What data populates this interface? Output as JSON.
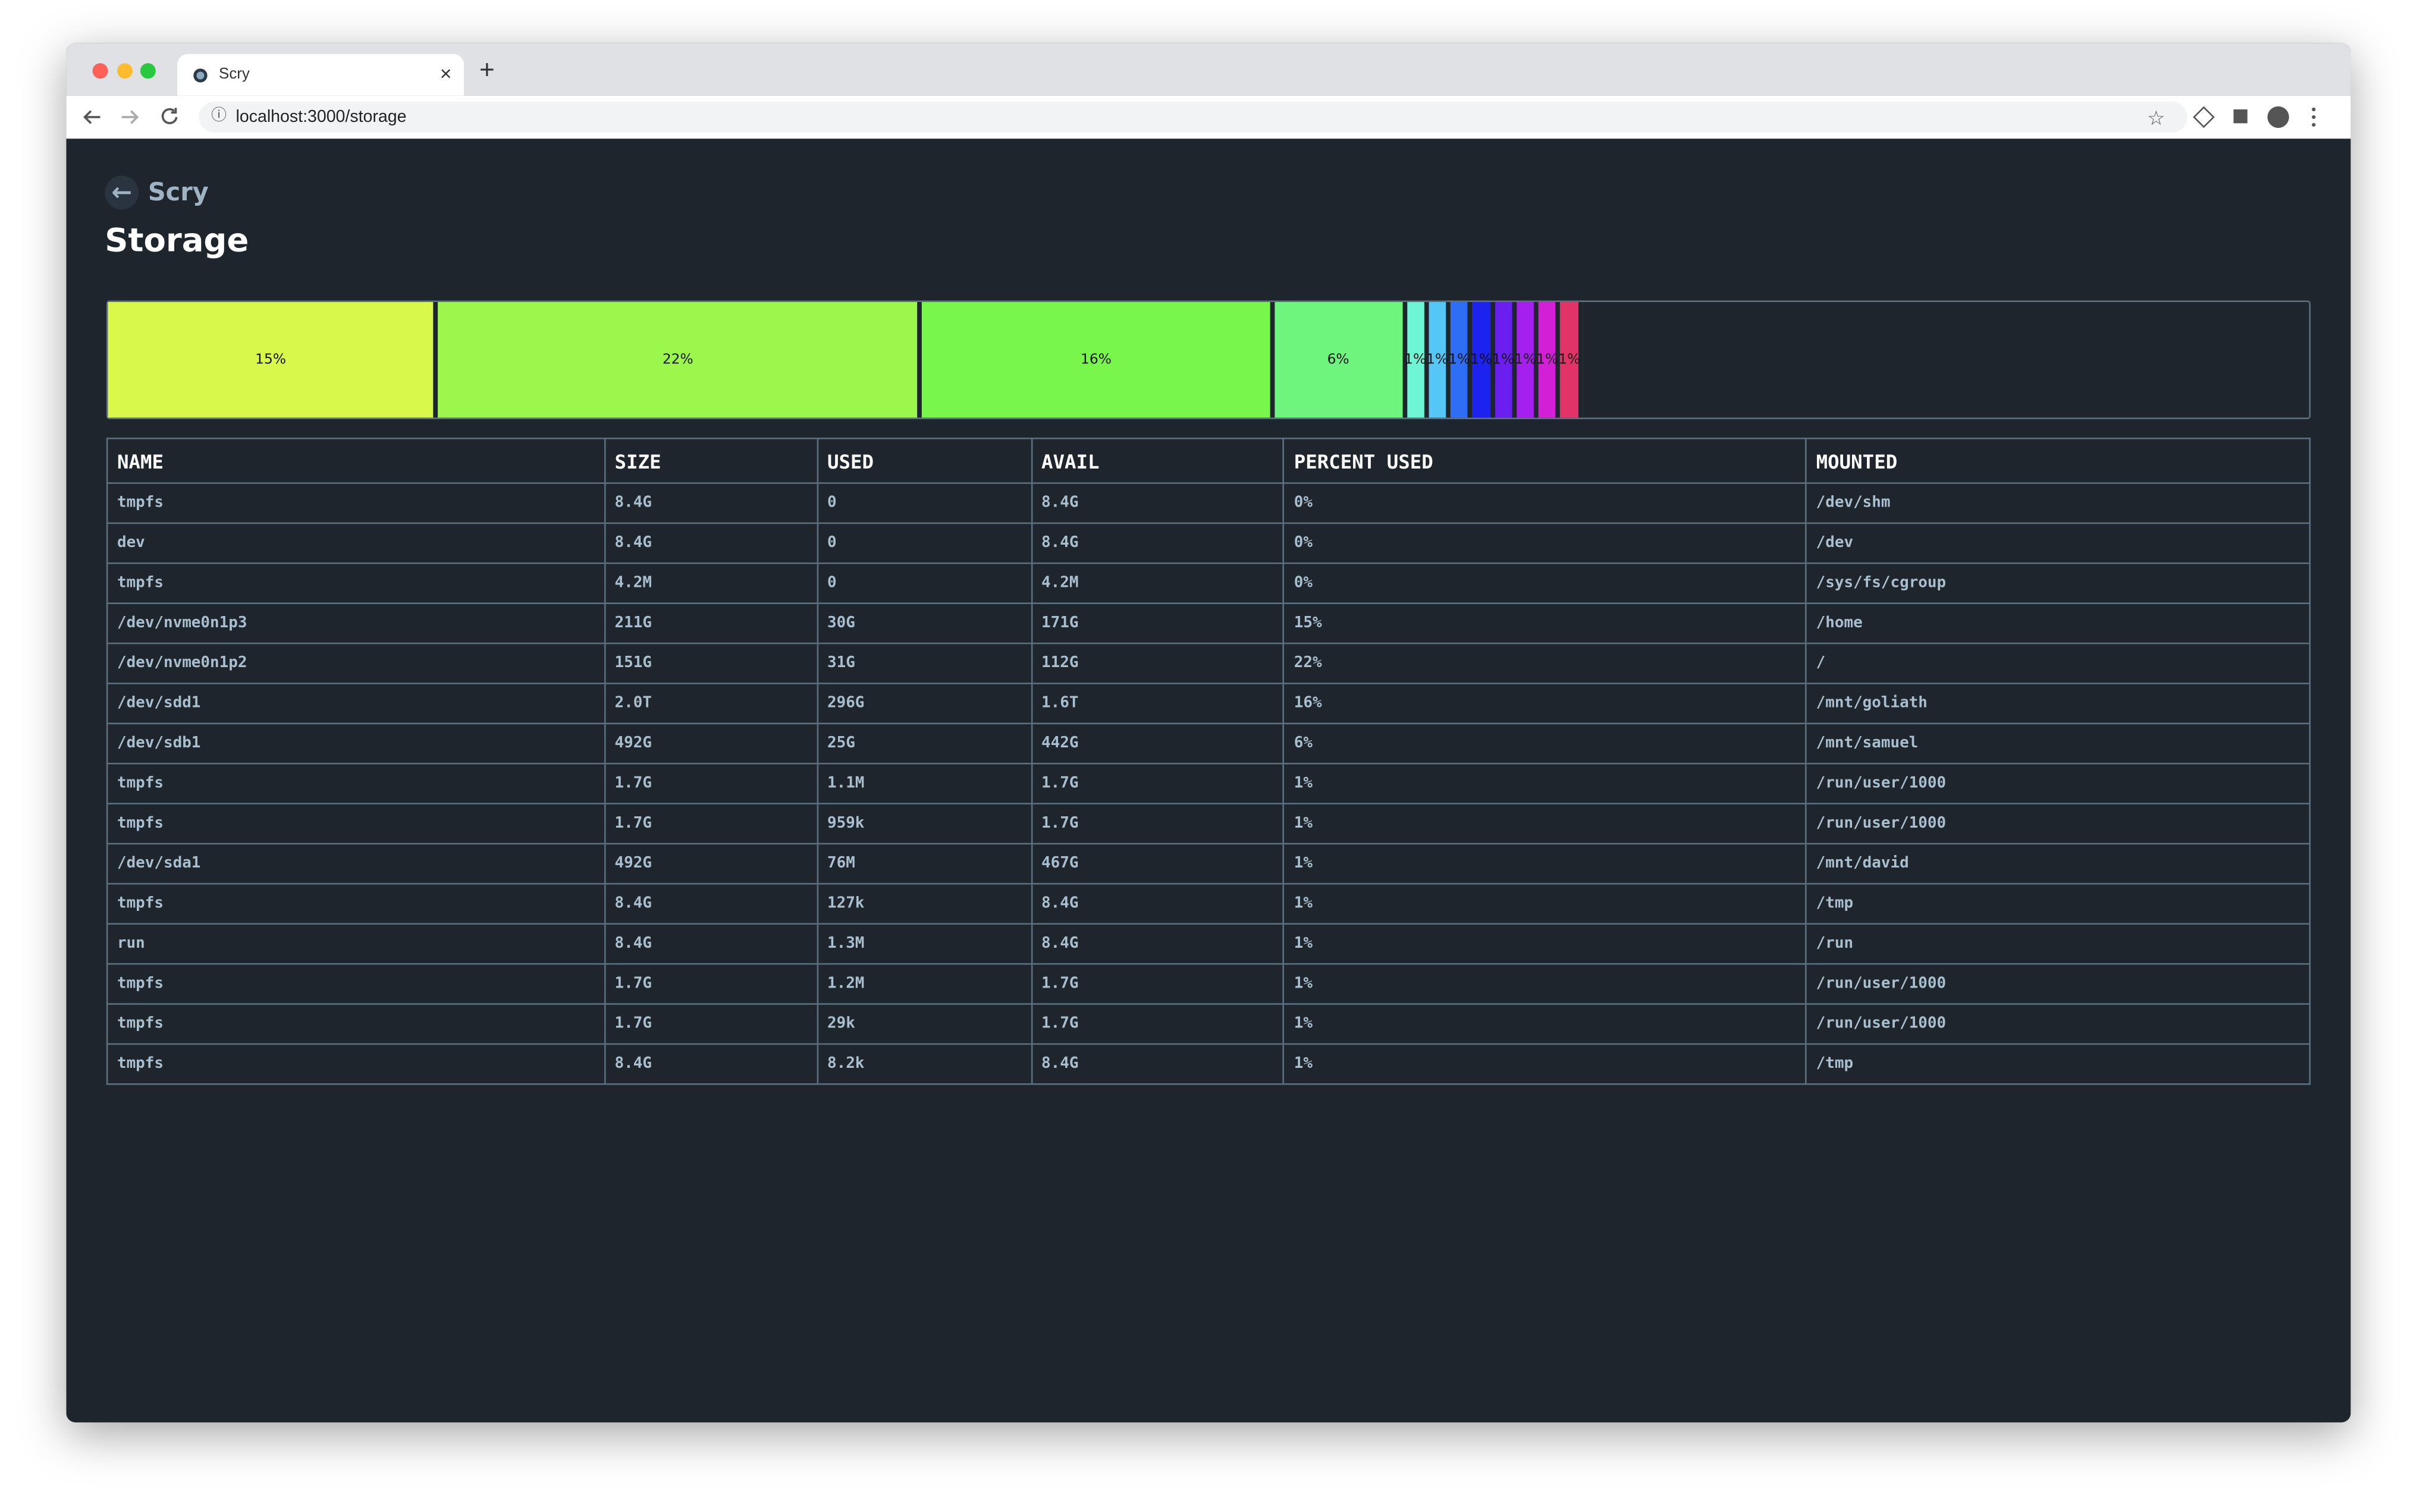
{
  "browser": {
    "tab_title": "Scry",
    "url": "localhost:3000/storage"
  },
  "header": {
    "back_link": "Scry",
    "title": "Storage"
  },
  "usage_bar": {
    "segments": [
      {
        "value": 15,
        "label": "15%",
        "color": "#d9f84c"
      },
      {
        "value": 22,
        "label": "22%",
        "color": "#9cf74c"
      },
      {
        "value": 16,
        "label": "16%",
        "color": "#78f64c"
      },
      {
        "value": 6,
        "label": "6%",
        "color": "#6ef57e"
      },
      {
        "value": 1,
        "label": "1%",
        "color": "#6ef5d6"
      },
      {
        "value": 1,
        "label": "1%",
        "color": "#55c6f5"
      },
      {
        "value": 1,
        "label": "1%",
        "color": "#2e6ef4"
      },
      {
        "value": 1,
        "label": "1%",
        "color": "#1e22ef"
      },
      {
        "value": 1,
        "label": "1%",
        "color": "#6a1fef"
      },
      {
        "value": 1,
        "label": "1%",
        "color": "#a51fef"
      },
      {
        "value": 1,
        "label": "1%",
        "color": "#d31fd6"
      },
      {
        "value": 1,
        "label": "1%",
        "color": "#e23368"
      }
    ]
  },
  "table": {
    "columns": [
      "NAME",
      "SIZE",
      "USED",
      "AVAIL",
      "PERCENT USED",
      "MOUNTED"
    ],
    "rows": [
      [
        "tmpfs",
        "8.4G",
        "0",
        "8.4G",
        "0%",
        "/dev/shm"
      ],
      [
        "dev",
        "8.4G",
        "0",
        "8.4G",
        "0%",
        "/dev"
      ],
      [
        "tmpfs",
        "4.2M",
        "0",
        "4.2M",
        "0%",
        "/sys/fs/cgroup"
      ],
      [
        "/dev/nvme0n1p3",
        "211G",
        "30G",
        "171G",
        "15%",
        "/home"
      ],
      [
        "/dev/nvme0n1p2",
        "151G",
        "31G",
        "112G",
        "22%",
        "/"
      ],
      [
        "/dev/sdd1",
        "2.0T",
        "296G",
        "1.6T",
        "16%",
        "/mnt/goliath"
      ],
      [
        "/dev/sdb1",
        "492G",
        "25G",
        "442G",
        "6%",
        "/mnt/samuel"
      ],
      [
        "tmpfs",
        "1.7G",
        "1.1M",
        "1.7G",
        "1%",
        "/run/user/1000"
      ],
      [
        "tmpfs",
        "1.7G",
        "959k",
        "1.7G",
        "1%",
        "/run/user/1000"
      ],
      [
        "/dev/sda1",
        "492G",
        "76M",
        "467G",
        "1%",
        "/mnt/david"
      ],
      [
        "tmpfs",
        "8.4G",
        "127k",
        "8.4G",
        "1%",
        "/tmp"
      ],
      [
        "run",
        "8.4G",
        "1.3M",
        "8.4G",
        "1%",
        "/run"
      ],
      [
        "tmpfs",
        "1.7G",
        "1.2M",
        "1.7G",
        "1%",
        "/run/user/1000"
      ],
      [
        "tmpfs",
        "1.7G",
        "29k",
        "1.7G",
        "1%",
        "/run/user/1000"
      ],
      [
        "tmpfs",
        "8.4G",
        "8.2k",
        "8.4G",
        "1%",
        "/tmp"
      ]
    ]
  }
}
